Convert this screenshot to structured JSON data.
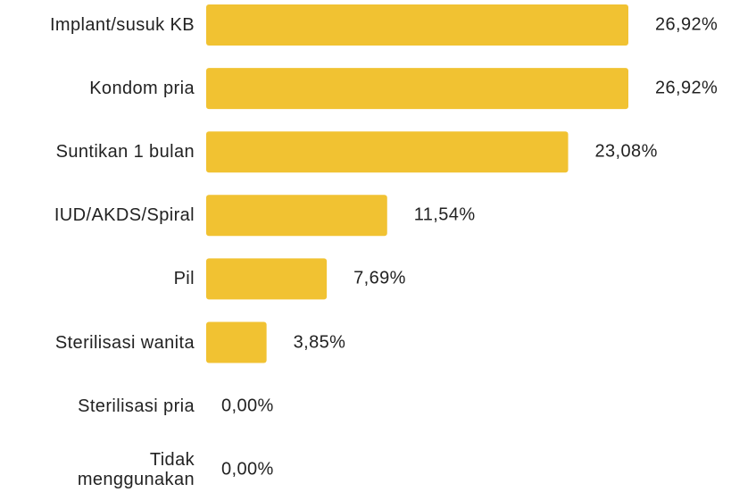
{
  "chart_data": {
    "type": "bar",
    "orientation": "horizontal",
    "color": "#f1c232",
    "categories": [
      "Implant/susuk KB",
      "Kondom pria",
      "Suntikan 1 bulan",
      "IUD/AKDS/Spiral",
      "Pil",
      "Sterilisasi wanita",
      "Sterilisasi pria",
      "Tidak menggunakan"
    ],
    "values": [
      26.92,
      26.92,
      23.08,
      11.54,
      7.69,
      3.85,
      0,
      0
    ],
    "value_labels": [
      "26,92%",
      "26,92%",
      "23,08%",
      "11,54%",
      "7,69%",
      "3,85%",
      "0,00%",
      "0,00%"
    ]
  }
}
